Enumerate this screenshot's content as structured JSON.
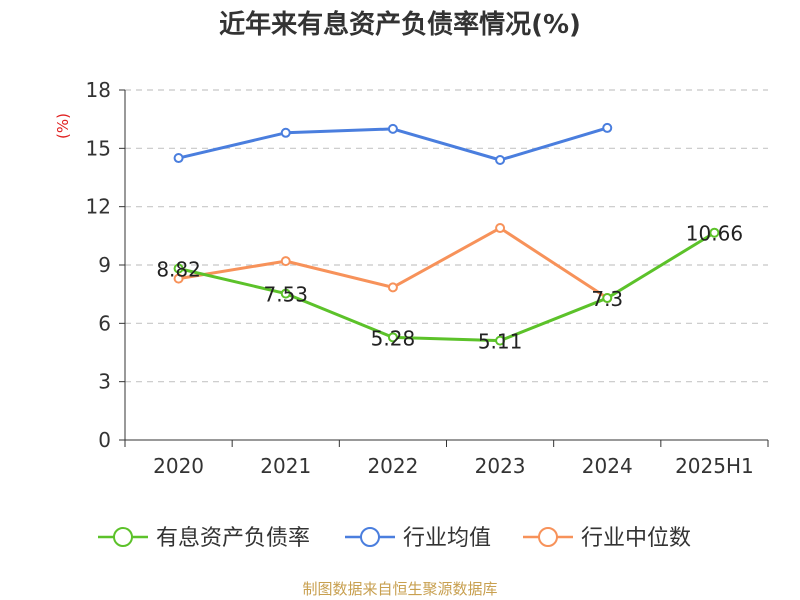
{
  "chart_data": {
    "type": "line",
    "title": "近年来有息资产负债率情况(%)",
    "ylabel": "(%)",
    "xlabel": "",
    "categories": [
      "2020",
      "2021",
      "2022",
      "2023",
      "2024",
      "2025H1"
    ],
    "ylim": [
      0,
      18
    ],
    "yticks": [
      0,
      3,
      6,
      9,
      12,
      15,
      18
    ],
    "grid": true,
    "legend_position": "bottom",
    "series": [
      {
        "name": "有息资产负债率",
        "color": "#5cc22a",
        "values": [
          8.82,
          7.53,
          5.28,
          5.11,
          7.3,
          10.66
        ],
        "labels": [
          "8.82",
          "7.53",
          "5.28",
          "5.11",
          "7.3",
          "10.66"
        ]
      },
      {
        "name": "行业均值",
        "color": "#4a7ede",
        "values": [
          14.5,
          15.8,
          16.0,
          14.4,
          16.05,
          null
        ]
      },
      {
        "name": "行业中位数",
        "color": "#f7925a",
        "values": [
          8.3,
          9.2,
          7.85,
          10.9,
          7.3,
          null
        ]
      }
    ]
  },
  "ylabel_color": "#e02020",
  "footer": {
    "source_text": "制图数据来自恒生聚源数据库",
    "color": "#c8a050"
  }
}
